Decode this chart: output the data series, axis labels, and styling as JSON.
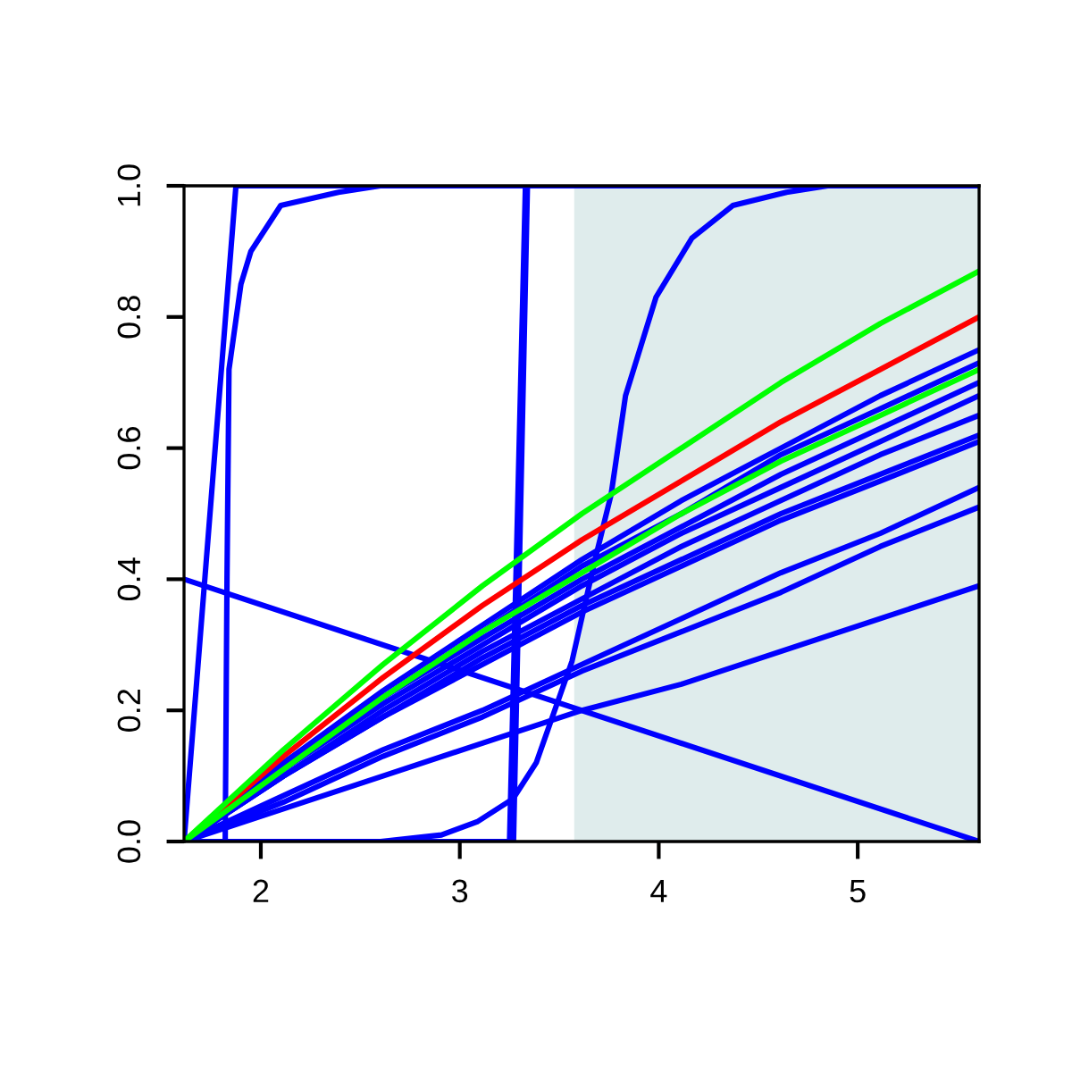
{
  "chart_data": {
    "type": "line",
    "x": [
      1.614,
      2.114,
      2.614,
      3.114,
      3.614,
      4.114,
      4.614,
      5.114,
      5.61
    ],
    "xlim": [
      1.614,
      5.61
    ],
    "ylim": [
      0,
      1
    ],
    "xticks": [
      2,
      3,
      4,
      5
    ],
    "yticks": [
      {
        "value": 0,
        "label": "0.0"
      },
      {
        "value": 0.2,
        "label": "0.2"
      },
      {
        "value": 0.4,
        "label": "0.4"
      },
      {
        "value": 0.6,
        "label": "0.6"
      },
      {
        "value": 0.8,
        "label": "0.8"
      },
      {
        "value": 1,
        "label": "1.0"
      }
    ],
    "grid": false,
    "legend": false,
    "marker": "none",
    "line_style": "solid",
    "bands": [
      {
        "axis": "x",
        "from": 3.575,
        "to": 5.61,
        "color": "#dfecec"
      }
    ],
    "series": [
      {
        "color": "#0000ff",
        "x": [
          1.614,
          5.61
        ],
        "values": [
          0.4,
          0
        ]
      },
      {
        "color": "#0000ff",
        "x": [
          1.614,
          1.875,
          5.61
        ],
        "values": [
          0,
          1,
          1
        ]
      },
      {
        "color": "#0000ff",
        "x": [
          1.614,
          1.821,
          1.83,
          1.84,
          1.9,
          1.95,
          2.1,
          2.39,
          2.6,
          5.61
        ],
        "values": [
          0,
          0,
          0.4,
          0.72,
          0.85,
          0.9,
          0.97,
          0.99,
          1,
          1
        ]
      },
      {
        "color": "#0000ff",
        "x": [
          1.614,
          3.25,
          3.29,
          3.33,
          5.61
        ],
        "values": [
          0,
          0,
          0.5,
          1,
          1
        ]
      },
      {
        "color": "#0000ff",
        "x": [
          1.614,
          3.27,
          3.305,
          3.34,
          5.61
        ],
        "values": [
          0,
          0,
          0.5,
          1,
          1
        ]
      },
      {
        "color": "#0000ff",
        "x": [
          1.614,
          2.602,
          2.908,
          3.087,
          3.267,
          3.384,
          3.564,
          3.68,
          3.761,
          3.833,
          3.986,
          4.166,
          4.372,
          4.642,
          4.849,
          5.61
        ],
        "values": [
          0,
          0,
          0.01,
          0.03,
          0.065,
          0.12,
          0.275,
          0.43,
          0.53,
          0.68,
          0.83,
          0.92,
          0.97,
          0.99,
          1,
          1
        ]
      },
      {
        "color": "#0000ff",
        "values": [
          0,
          0.12,
          0.23,
          0.33,
          0.43,
          0.52,
          0.6,
          0.68,
          0.75
        ]
      },
      {
        "color": "#0000ff",
        "values": [
          0,
          0.12,
          0.22,
          0.32,
          0.42,
          0.5,
          0.59,
          0.66,
          0.73
        ]
      },
      {
        "color": "#0000ff",
        "values": [
          0,
          0.11,
          0.22,
          0.31,
          0.4,
          0.48,
          0.56,
          0.63,
          0.7
        ]
      },
      {
        "color": "#0000ff",
        "values": [
          0,
          0.11,
          0.21,
          0.3,
          0.39,
          0.47,
          0.54,
          0.61,
          0.68
        ]
      },
      {
        "color": "#0000ff",
        "values": [
          0,
          0.1,
          0.2,
          0.29,
          0.37,
          0.45,
          0.52,
          0.59,
          0.65
        ]
      },
      {
        "color": "#0000ff",
        "values": [
          0,
          0.1,
          0.19,
          0.28,
          0.36,
          0.43,
          0.5,
          0.56,
          0.62
        ]
      },
      {
        "color": "#0000ff",
        "values": [
          0,
          0.1,
          0.19,
          0.27,
          0.35,
          0.42,
          0.49,
          0.55,
          0.61
        ]
      },
      {
        "color": "#0000ff",
        "values": [
          0,
          0.07,
          0.14,
          0.2,
          0.27,
          0.34,
          0.41,
          0.47,
          0.54
        ]
      },
      {
        "color": "#0000ff",
        "values": [
          0,
          0.06,
          0.13,
          0.19,
          0.26,
          0.32,
          0.38,
          0.45,
          0.51
        ]
      },
      {
        "color": "#0000ff",
        "values": [
          0,
          0.05,
          0.1,
          0.15,
          0.2,
          0.24,
          0.29,
          0.34,
          0.39
        ]
      },
      {
        "color": "#ff0000",
        "values": [
          0,
          0.13,
          0.25,
          0.36,
          0.46,
          0.55,
          0.64,
          0.72,
          0.8
        ]
      },
      {
        "color": "#00ff00",
        "values": [
          0,
          0.11,
          0.22,
          0.32,
          0.41,
          0.5,
          0.58,
          0.65,
          0.72
        ]
      },
      {
        "color": "#00ff00",
        "values": [
          0,
          0.14,
          0.27,
          0.39,
          0.5,
          0.6,
          0.7,
          0.79,
          0.87
        ]
      }
    ]
  }
}
